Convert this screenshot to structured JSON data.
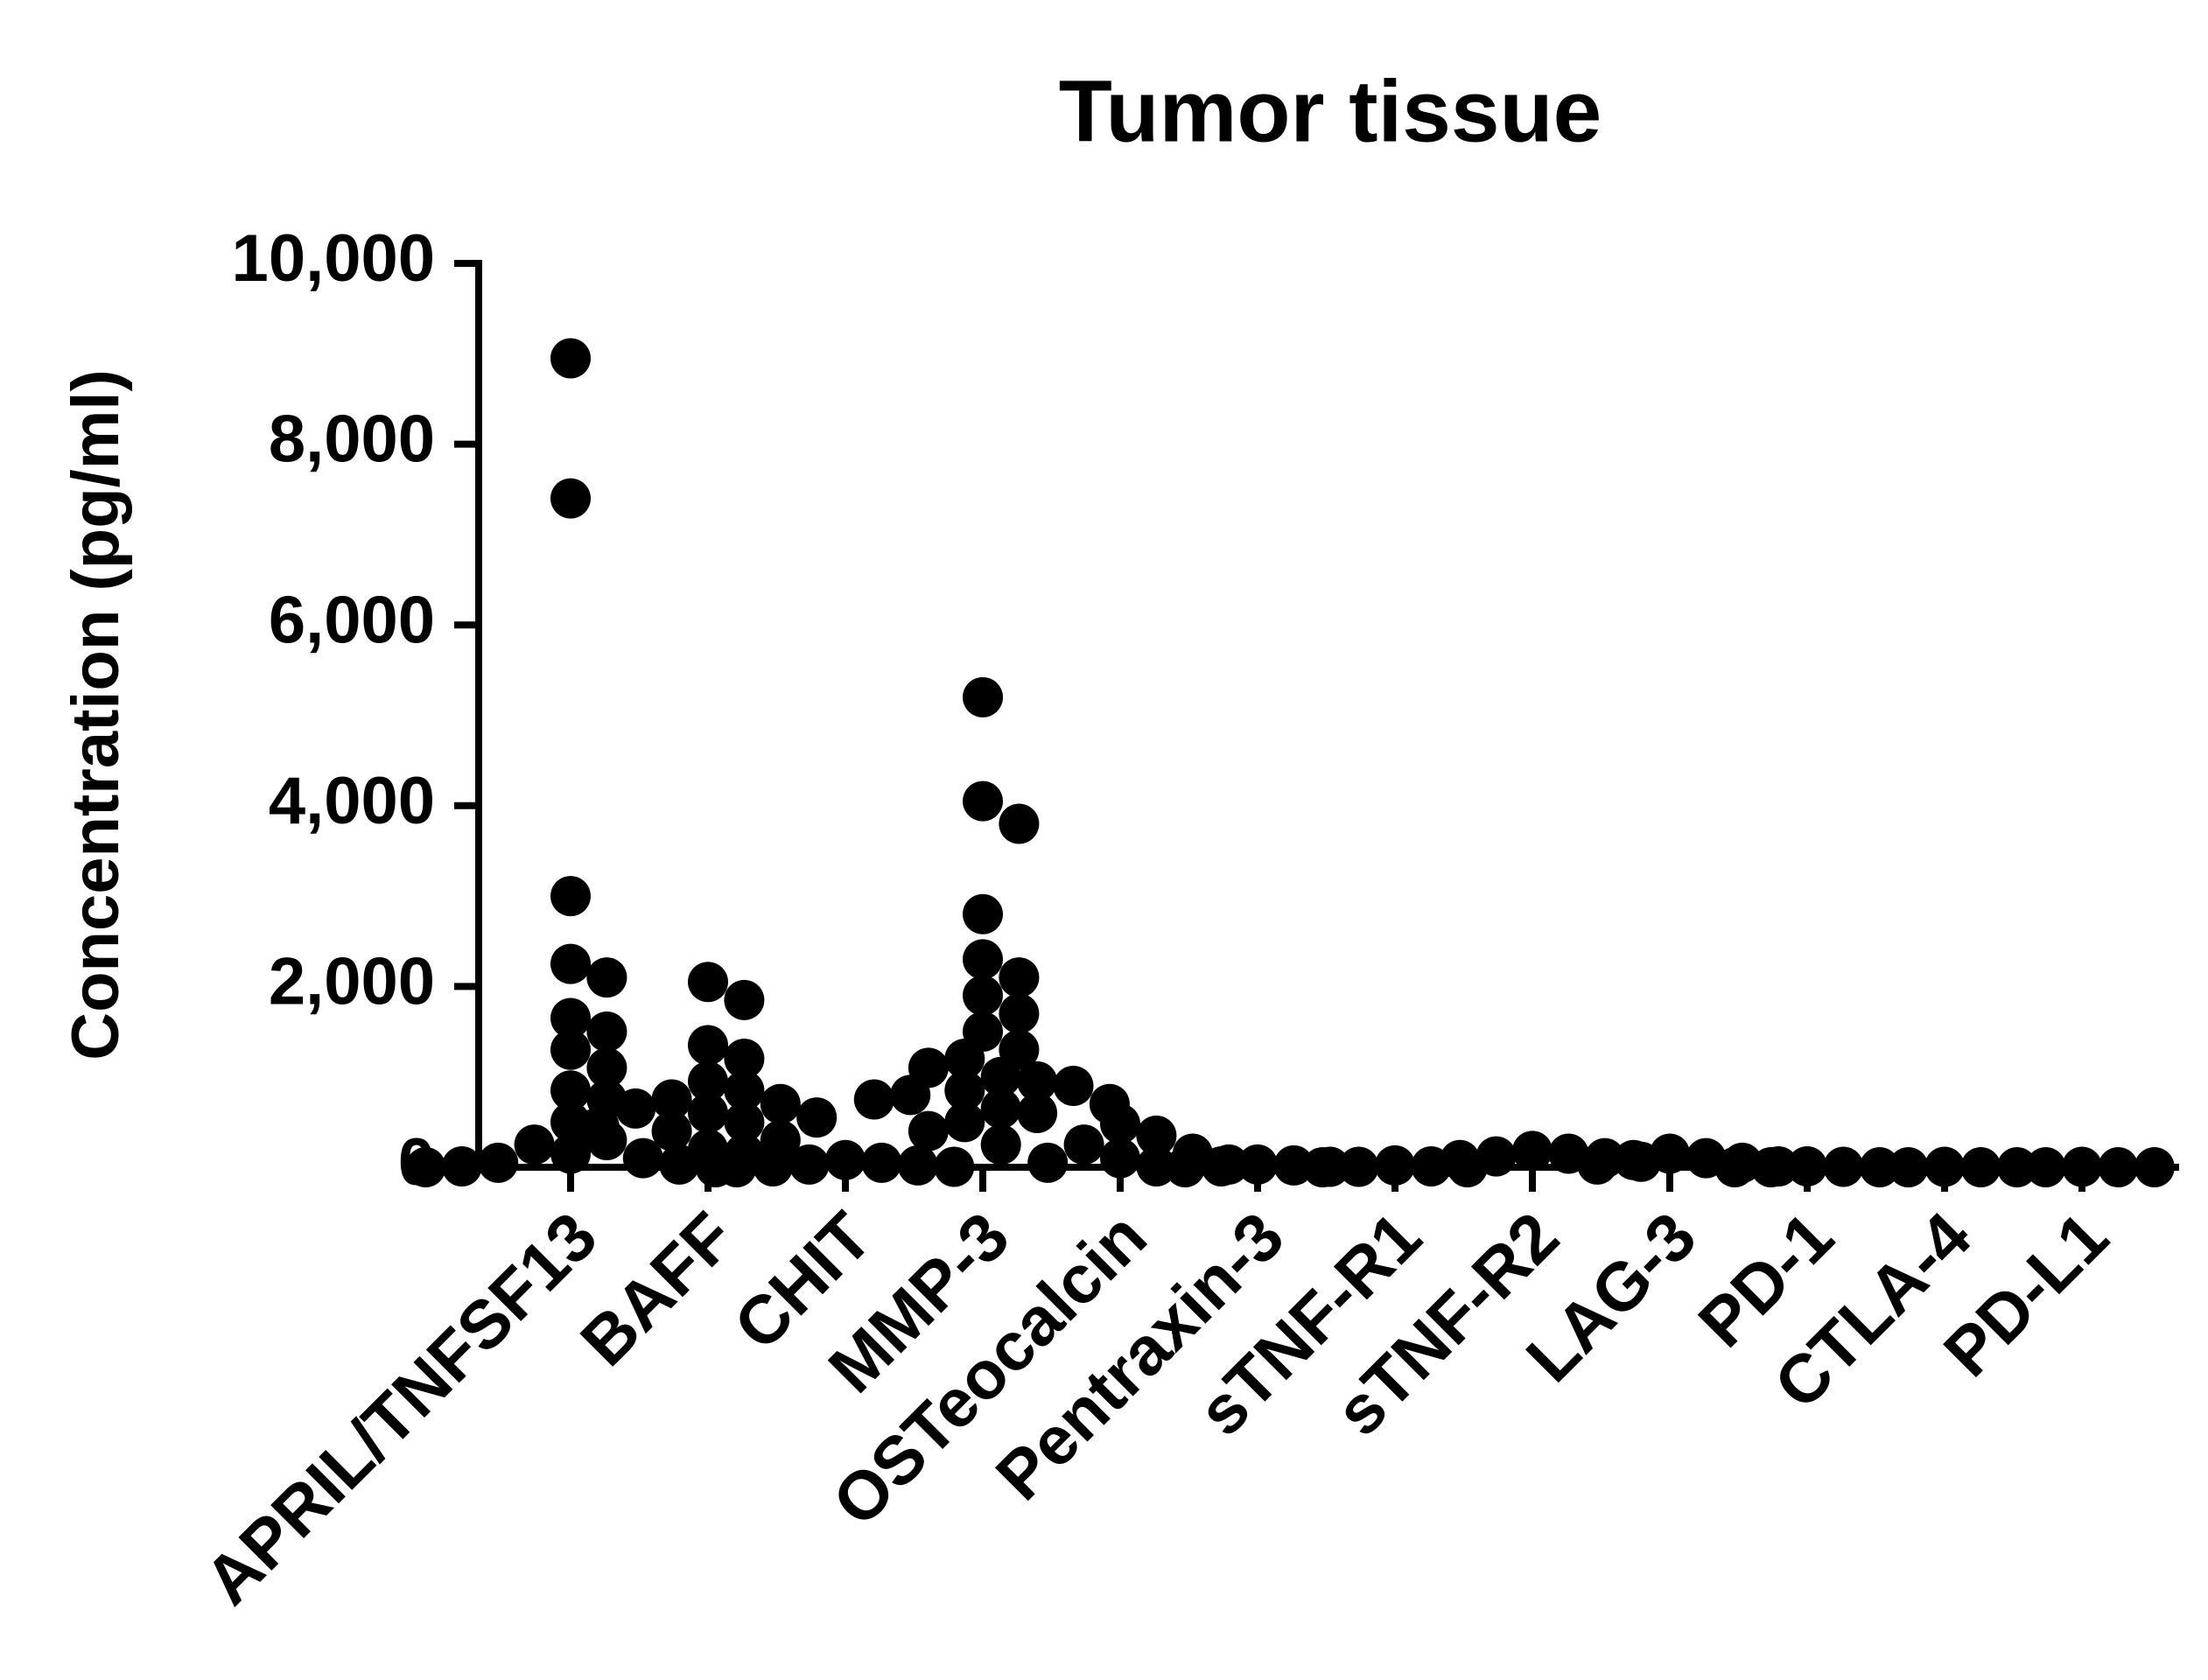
{
  "chart_data": {
    "type": "dotplot",
    "title": "Tumor tissue",
    "y_label": "Concentration (pg/ml)",
    "color": "#000000",
    "categories": [
      "APRIL/TNFSF13",
      "BAFF",
      "CHIT",
      "MMP-3",
      "OSTeocalcin",
      "Pentraxin-3",
      "sTNF-R1",
      "sTNF-R2",
      "LAG-3",
      "PD-1",
      "CTLA-4",
      "PD-L1"
    ],
    "values": [
      [
        8950,
        7400,
        3000,
        2250,
        2100,
        1650,
        1500,
        1300,
        1100,
        850,
        750,
        500,
        300,
        250,
        150,
        100,
        50,
        30,
        10,
        0,
        0
      ],
      [
        2050,
        1850,
        1350,
        1200,
        950,
        850,
        750,
        700,
        650,
        600,
        550,
        500,
        450,
        400,
        300,
        200,
        150
      ],
      [
        80,
        50,
        30,
        20,
        10,
        5,
        0
      ],
      [
        5200,
        4050,
        3800,
        2800,
        2300,
        2100,
        1900,
        1700,
        1500,
        1300,
        1200,
        1100,
        1000,
        950,
        900,
        850,
        800,
        750,
        700,
        650,
        600,
        500,
        400,
        250
      ],
      [
        480,
        350,
        250,
        150,
        100,
        50,
        30,
        10
      ],
      [
        30,
        20,
        10,
        5,
        0
      ],
      [
        20,
        10,
        5,
        0,
        0
      ],
      [
        180,
        150,
        120,
        100,
        80,
        60
      ],
      [
        150,
        100,
        80,
        50,
        30,
        10
      ],
      [
        10,
        5,
        0,
        0,
        0
      ],
      [
        5,
        0,
        0,
        0
      ],
      [
        5,
        0,
        0,
        0
      ]
    ],
    "ylim": [
      0,
      10000
    ],
    "yticks": [
      0,
      {
        "value": 2000,
        "label": "2,000"
      },
      {
        "value": 4000,
        "label": "4,000"
      },
      {
        "value": 6000,
        "label": "6,000"
      },
      {
        "value": 8000,
        "label": "8,000"
      },
      {
        "value": 10000,
        "label": "10,000"
      }
    ]
  }
}
